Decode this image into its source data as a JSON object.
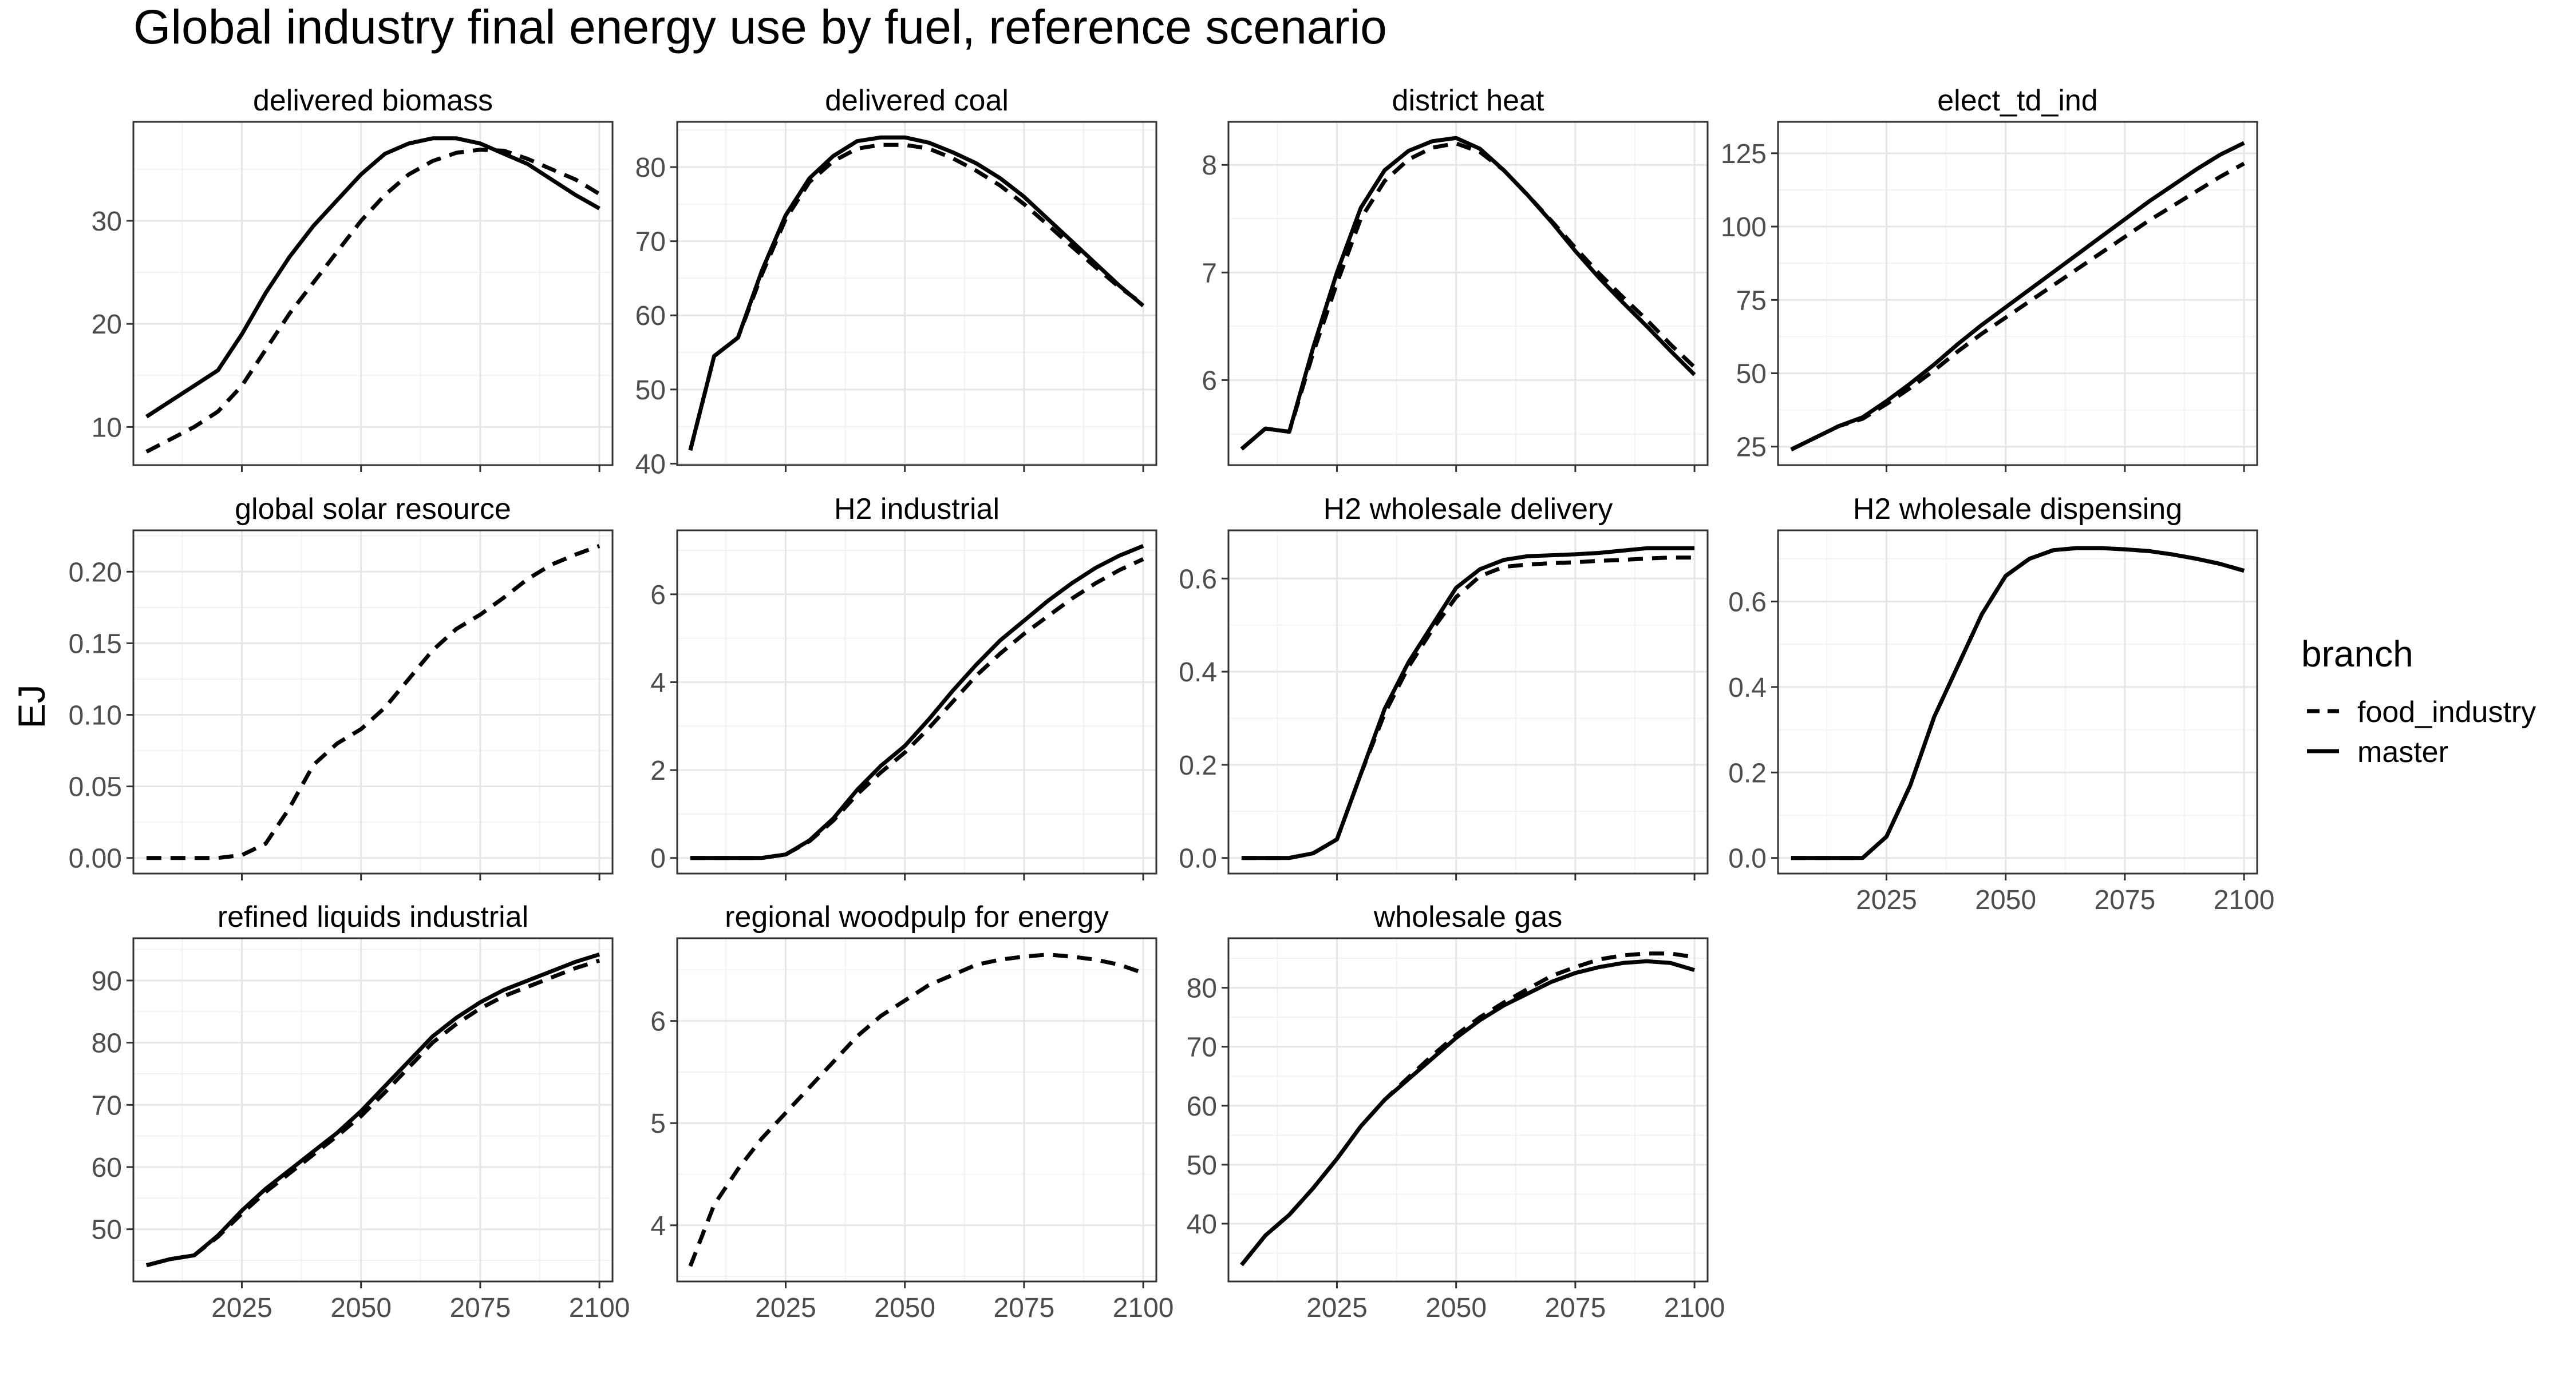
{
  "title": "Global industry final energy use by fuel, reference scenario",
  "ylabel": "EJ",
  "legend": {
    "title": "branch",
    "placement": "right",
    "entries": [
      {
        "label": "food_industry",
        "linetype": "dashed"
      },
      {
        "label": "master",
        "linetype": "solid"
      }
    ]
  },
  "colors": {
    "line": "#000000",
    "panel_border": "#333333",
    "grid_major": "#e6e6e6",
    "grid_minor": "#f2f2f2",
    "text": "#000000",
    "tick_text": "#4d4d4d"
  },
  "chart_data": {
    "type": "line",
    "facet": "wrap",
    "ncol": 4,
    "scales": "free_y",
    "x": [
      2005,
      2010,
      2015,
      2020,
      2025,
      2030,
      2035,
      2040,
      2045,
      2050,
      2055,
      2060,
      2065,
      2070,
      2075,
      2080,
      2085,
      2090,
      2095,
      2100
    ],
    "xlim": [
      2002.25,
      2102.75
    ],
    "xticks": [
      2025,
      2050,
      2075,
      2100
    ],
    "grid": true,
    "panels": [
      {
        "title": "delivered biomass",
        "ylim": [
          6.3,
          39.6
        ],
        "yticks": [
          10,
          20,
          30
        ],
        "series": [
          {
            "name": "master",
            "values": [
              11.0,
              12.5,
              14.0,
              15.5,
              19.0,
              23.0,
              26.5,
              29.5,
              32.0,
              34.5,
              36.5,
              37.5,
              38.0,
              38.0,
              37.5,
              36.5,
              35.5,
              34.0,
              32.5,
              31.2
            ]
          },
          {
            "name": "food_industry",
            "values": [
              7.6,
              8.8,
              10.0,
              11.5,
              14.0,
              17.5,
              21.0,
              24.0,
              27.0,
              30.0,
              32.5,
              34.5,
              35.8,
              36.6,
              36.9,
              36.8,
              36.0,
              35.0,
              34.0,
              32.6
            ]
          }
        ]
      },
      {
        "title": "delivered coal",
        "ylim": [
          39.8,
          86.1
        ],
        "yticks": [
          40,
          50,
          60,
          70,
          80
        ],
        "series": [
          {
            "name": "master",
            "values": [
              41.8,
              54.5,
              57.0,
              66.0,
              73.5,
              78.5,
              81.5,
              83.5,
              84.0,
              84.0,
              83.3,
              82.0,
              80.5,
              78.5,
              76.0,
              73.0,
              70.0,
              67.0,
              64.0,
              61.3
            ]
          },
          {
            "name": "food_industry",
            "values": [
              41.8,
              54.5,
              57.0,
              65.5,
              73.0,
              78.0,
              80.8,
              82.5,
              83.0,
              83.0,
              82.5,
              81.2,
              79.5,
              77.5,
              75.0,
              72.2,
              69.3,
              66.5,
              63.8,
              61.5
            ]
          }
        ]
      },
      {
        "title": "district heat",
        "ylim": [
          5.21,
          8.4
        ],
        "yticks": [
          6,
          7,
          8
        ],
        "series": [
          {
            "name": "master",
            "values": [
              5.36,
              5.55,
              5.52,
              6.3,
              7.0,
              7.6,
              7.95,
              8.13,
              8.22,
              8.25,
              8.15,
              7.95,
              7.72,
              7.47,
              7.2,
              6.95,
              6.72,
              6.5,
              6.27,
              6.05
            ]
          },
          {
            "name": "food_industry",
            "values": [
              5.36,
              5.55,
              5.52,
              6.25,
              6.9,
              7.5,
              7.85,
              8.05,
              8.16,
              8.2,
              8.12,
              7.95,
              7.72,
              7.48,
              7.23,
              6.99,
              6.77,
              6.56,
              6.33,
              6.12
            ]
          }
        ]
      },
      {
        "title": "elect_td_ind",
        "ylim": [
          18.7,
          135.7
        ],
        "yticks": [
          25,
          50,
          75,
          100,
          125
        ],
        "series": [
          {
            "name": "master",
            "values": [
              24.0,
              28.0,
              32.0,
              35.0,
              40.5,
              46.5,
              53.0,
              60.0,
              66.5,
              72.5,
              78.5,
              84.5,
              90.5,
              96.5,
              102.5,
              108.5,
              114.0,
              119.5,
              124.5,
              128.5
            ]
          },
          {
            "name": "food_industry",
            "values": [
              24.0,
              28.0,
              32.0,
              34.5,
              39.5,
              45.0,
              51.0,
              57.5,
              63.5,
              69.0,
              74.5,
              80.0,
              85.5,
              91.0,
              96.5,
              102.0,
              107.0,
              112.0,
              117.0,
              121.5
            ]
          }
        ]
      },
      {
        "title": "global solar resource",
        "ylim": [
          -0.0109,
          0.2289
        ],
        "yticks": [
          0.0,
          0.05,
          0.1,
          0.15,
          0.2
        ],
        "series": [
          {
            "name": "food_industry",
            "values": [
              0.0,
              0.0,
              0.0,
              0.0,
              0.002,
              0.01,
              0.035,
              0.065,
              0.08,
              0.09,
              0.105,
              0.125,
              0.145,
              0.16,
              0.17,
              0.182,
              0.195,
              0.205,
              0.212,
              0.218
            ]
          }
        ]
      },
      {
        "title": "H2 industrial",
        "ylim": [
          -0.355,
          7.455
        ],
        "yticks": [
          0,
          2,
          4,
          6
        ],
        "series": [
          {
            "name": "master",
            "values": [
              0.0,
              0.0,
              0.0,
              0.0,
              0.08,
              0.4,
              0.9,
              1.55,
              2.1,
              2.55,
              3.15,
              3.8,
              4.4,
              4.95,
              5.4,
              5.85,
              6.25,
              6.6,
              6.88,
              7.1
            ]
          },
          {
            "name": "food_industry",
            "values": [
              0.0,
              0.0,
              0.0,
              0.0,
              0.08,
              0.38,
              0.85,
              1.45,
              1.95,
              2.4,
              2.95,
              3.55,
              4.15,
              4.65,
              5.1,
              5.5,
              5.9,
              6.25,
              6.55,
              6.8
            ]
          }
        ]
      },
      {
        "title": "H2 wholesale delivery",
        "ylim": [
          -0.0335,
          0.7035
        ],
        "yticks": [
          0.0,
          0.2,
          0.4,
          0.6
        ],
        "series": [
          {
            "name": "master",
            "values": [
              0.0,
              0.0,
              0.0,
              0.01,
              0.04,
              0.18,
              0.32,
              0.42,
              0.5,
              0.58,
              0.62,
              0.64,
              0.648,
              0.65,
              0.652,
              0.655,
              0.66,
              0.665,
              0.665,
              0.665
            ]
          },
          {
            "name": "food_industry",
            "values": [
              0.0,
              0.0,
              0.0,
              0.01,
              0.04,
              0.18,
              0.31,
              0.41,
              0.49,
              0.56,
              0.605,
              0.625,
              0.63,
              0.633,
              0.635,
              0.638,
              0.64,
              0.643,
              0.645,
              0.645
            ]
          }
        ]
      },
      {
        "title": "H2 wholesale dispensing",
        "ylim": [
          -0.0365,
          0.7665
        ],
        "yticks": [
          0.0,
          0.2,
          0.4,
          0.6
        ],
        "series": [
          {
            "name": "master",
            "values": [
              0.0,
              0.0,
              0.0,
              0.0,
              0.05,
              0.17,
              0.33,
              0.45,
              0.57,
              0.66,
              0.7,
              0.72,
              0.725,
              0.725,
              0.722,
              0.718,
              0.71,
              0.7,
              0.688,
              0.672
            ]
          },
          {
            "name": "food_industry",
            "values": [
              0.0,
              0.0,
              0.0,
              0.0,
              0.05,
              0.17,
              0.33,
              0.45,
              0.57,
              0.66,
              0.7,
              0.72,
              0.725,
              0.725,
              0.722,
              0.718,
              0.71,
              0.7,
              0.688,
              0.672
            ]
          }
        ]
      },
      {
        "title": "refined liquids industrial",
        "ylim": [
          41.6,
          96.8
        ],
        "yticks": [
          50,
          60,
          70,
          80,
          90
        ],
        "series": [
          {
            "name": "master",
            "values": [
              44.2,
              45.2,
              45.8,
              49.0,
              53.0,
              56.5,
              59.5,
              62.5,
              65.5,
              69.0,
              73.0,
              77.0,
              81.0,
              84.0,
              86.5,
              88.5,
              90.0,
              91.5,
              93.0,
              94.2
            ]
          },
          {
            "name": "food_industry",
            "values": [
              44.2,
              45.2,
              45.8,
              48.8,
              52.5,
              56.0,
              59.0,
              62.0,
              65.0,
              68.2,
              72.0,
              76.0,
              80.0,
              83.0,
              85.5,
              87.5,
              89.0,
              90.5,
              92.0,
              93.2
            ]
          }
        ]
      },
      {
        "title": "regional woodpulp for energy",
        "ylim": [
          3.45,
          6.81
        ],
        "yticks": [
          4,
          5,
          6
        ],
        "series": [
          {
            "name": "food_industry",
            "values": [
              3.6,
              4.2,
              4.55,
              4.85,
              5.1,
              5.35,
              5.6,
              5.85,
              6.05,
              6.2,
              6.35,
              6.45,
              6.55,
              6.6,
              6.63,
              6.65,
              6.63,
              6.6,
              6.55,
              6.47
            ]
          }
        ]
      },
      {
        "title": "wholesale gas",
        "ylim": [
          30.2,
          88.4
        ],
        "yticks": [
          40,
          50,
          60,
          70,
          80
        ],
        "series": [
          {
            "name": "master",
            "values": [
              33.0,
              38.0,
              41.5,
              46.0,
              51.0,
              56.5,
              61.0,
              64.5,
              68.0,
              71.5,
              74.5,
              77.0,
              79.0,
              81.0,
              82.5,
              83.5,
              84.2,
              84.5,
              84.2,
              83.0
            ]
          },
          {
            "name": "food_industry",
            "values": [
              33.0,
              38.0,
              41.5,
              46.0,
              51.0,
              56.5,
              61.0,
              64.8,
              68.5,
              72.0,
              75.0,
              77.5,
              79.8,
              82.0,
              83.5,
              84.8,
              85.5,
              85.8,
              85.8,
              85.2
            ]
          }
        ]
      }
    ]
  }
}
